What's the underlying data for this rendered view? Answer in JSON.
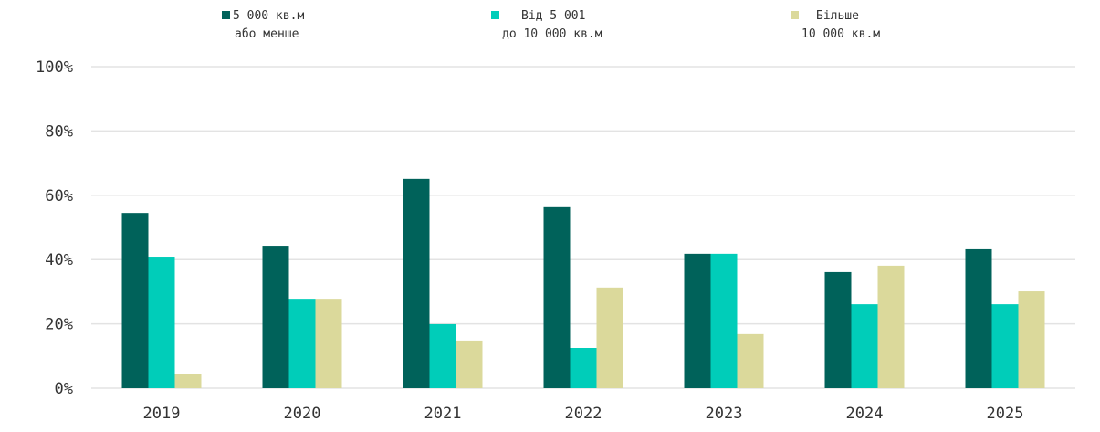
{
  "chart_data": {
    "type": "bar",
    "title": "",
    "xlabel": "",
    "ylabel": "",
    "categories": [
      "2019",
      "2020",
      "2021",
      "2022",
      "2023",
      "2024",
      "2025"
    ],
    "ylim": [
      0,
      100
    ],
    "yticks": [
      "0%",
      "20%",
      "40%",
      "60%",
      "80%",
      "100%"
    ],
    "yticks_values": [
      0,
      20,
      40,
      60,
      80,
      100
    ],
    "grid": true,
    "legend_position": "top",
    "series": [
      {
        "name": "5 000 кв.м або менше",
        "name_line1": "5 000 кв.м",
        "name_line2": "або менше",
        "color": "#00625a",
        "values": [
          54.5,
          44.3,
          65.1,
          56.3,
          41.8,
          36.1,
          43.2
        ]
      },
      {
        "name": "Від 5 001 до 10 000 кв.м",
        "name_line1": "Від 5 001",
        "name_line2": "до 10 000 кв.м",
        "color": "#00cdb9",
        "values": [
          40.9,
          27.8,
          19.9,
          12.5,
          41.8,
          26.1,
          26.1
        ]
      },
      {
        "name": "Більше 10 000 кв.м",
        "name_line1": "Більше",
        "name_line2": "10 000 кв.м",
        "color": "#dbd99b",
        "values": [
          4.4,
          27.8,
          14.8,
          31.3,
          16.8,
          38.1,
          30.1
        ]
      }
    ]
  }
}
